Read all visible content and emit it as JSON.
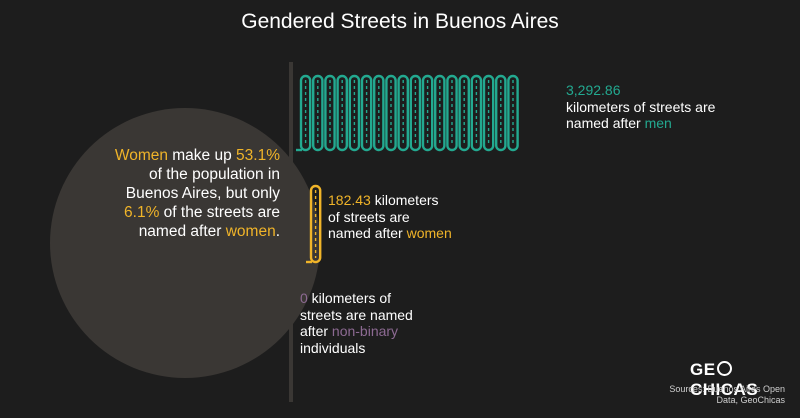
{
  "title": "Gendered Streets in Buenos Aires",
  "callout": {
    "w1": "Women",
    "t1": " make up",
    "v1": "53.1%",
    "t2": " of the population in Buenos Aires, but only ",
    "v2": "6.1%",
    "t3": " of the streets are named after ",
    "w2": "women",
    "t4": "."
  },
  "labels": {
    "men": {
      "value": "3,292.86",
      "text": " kilometers of streets are named after ",
      "group": "men"
    },
    "women": {
      "value": "182.43",
      "text": " kilometers of streets are named after ",
      "group": "women"
    },
    "nonbinary": {
      "value": "0",
      "text": " kilometers of streets are named after ",
      "group": "non-binary",
      "tail": " individuals"
    }
  },
  "chart_data": {
    "type": "bar",
    "categories": [
      "men",
      "women",
      "non-binary"
    ],
    "values": [
      3292.86,
      182.43,
      0
    ],
    "unit": "kilometers of streets"
  },
  "colors": {
    "men": "#23a990",
    "women": "#f0b429",
    "nonbinary": "#8d6a93",
    "circle": "#3a3734"
  },
  "logo": {
    "a": "GE",
    "b": "CHICAS"
  },
  "sources": "Sources: Buenos Aires Open Data, GeoChicas"
}
